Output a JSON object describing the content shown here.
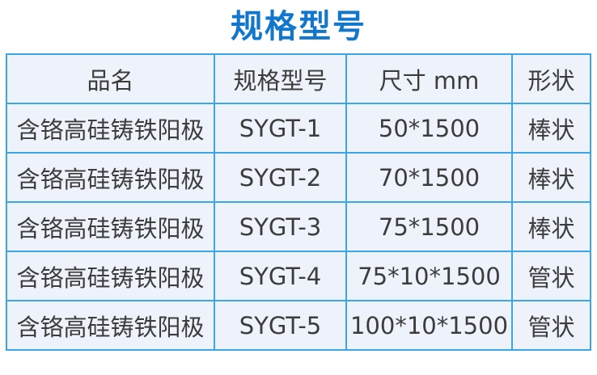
{
  "page": {
    "title": "规格型号"
  },
  "table": {
    "headers": [
      "品名",
      "规格型号",
      "尺寸 mm",
      "形状"
    ],
    "rows": [
      [
        "含铬高硅铸铁阳极",
        "SYGT-1",
        "50*1500",
        "棒状"
      ],
      [
        "含铬高硅铸铁阳极",
        "SYGT-2",
        "70*1500",
        "棒状"
      ],
      [
        "含铬高硅铸铁阳极",
        "SYGT-3",
        "75*1500",
        "棒状"
      ],
      [
        "含铬高硅铸铁阳极",
        "SYGT-4",
        "75*10*1500",
        "管状"
      ],
      [
        "含铬高硅铸铁阳极",
        "SYGT-5",
        "100*10*1500",
        "管状"
      ]
    ]
  },
  "colors": {
    "title_blue": "#1177cd",
    "border_blue": "#3ba5e5",
    "cell_bg": "#eef2fb",
    "text_dark": "#3c3c3c",
    "page_bg": "#ffffff"
  }
}
